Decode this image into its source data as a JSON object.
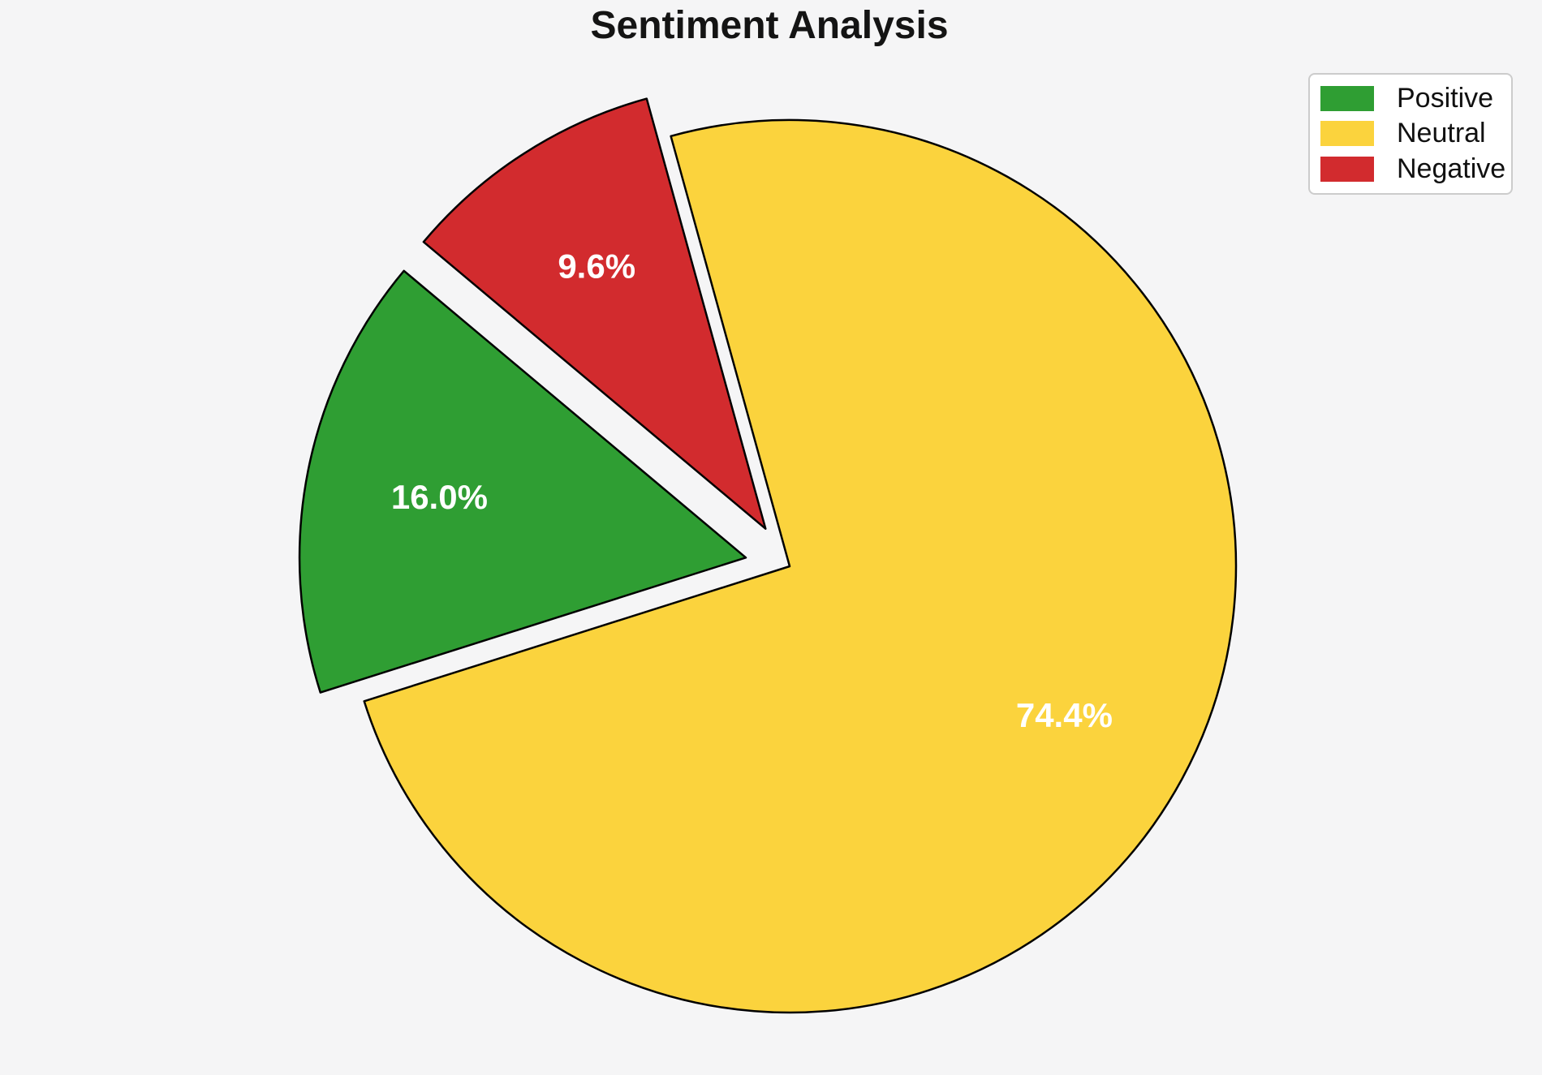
{
  "chart_data": {
    "type": "pie",
    "title": "Sentiment Analysis",
    "slices": [
      {
        "label": "Positive",
        "value": 16.0,
        "pct_label": "16.0%",
        "color": "#2F9E33",
        "explode": 0.1
      },
      {
        "label": "Neutral",
        "value": 74.4,
        "pct_label": "74.4%",
        "color": "#FBD33D",
        "explode": 0
      },
      {
        "label": "Negative",
        "value": 9.6,
        "pct_label": "9.6%",
        "color": "#D22B2E",
        "explode": 0.1
      }
    ],
    "startangle": 140,
    "counterclock": true,
    "pctdistance": 0.7,
    "edge_color": "#000000",
    "edge_width": 2.5,
    "pct_label_color": "#FFFFFF",
    "legend_position": "upper right",
    "background_color": "#F5F5F6",
    "legend_labels": [
      "Positive",
      "Neutral",
      "Negative"
    ]
  }
}
